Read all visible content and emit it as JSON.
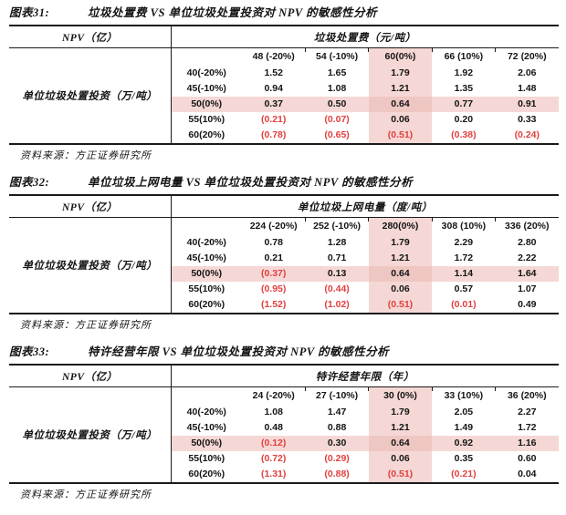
{
  "page": {
    "background": "#ffffff",
    "highlight_pink": "#f5d8d5",
    "highlight_pink_intersection": "#eec6c2",
    "negative_number_color": "#e04040",
    "border_color": "#1a1a1a"
  },
  "figures": [
    {
      "label": "图表31:",
      "title": "垃圾处置费 VS 单位垃圾处置投资对 NPV 的敏感性分析",
      "corner_header": "NPV（亿）",
      "col_axis_label": "垃圾处置费（元/吨）",
      "row_axis_label": "单位垃圾处置投资（万/吨）",
      "col_headers": [
        "48 (-20%)",
        "54 (-10%)",
        "60(0%)",
        "66 (10%)",
        "72 (20%)"
      ],
      "highlight_col": 2,
      "highlight_row": 2,
      "rows": [
        {
          "label": "40(-20%)",
          "values": [
            "1.52",
            "1.65",
            "1.79",
            "1.92",
            "2.06"
          ]
        },
        {
          "label": "45(-10%)",
          "values": [
            "0.94",
            "1.08",
            "1.21",
            "1.35",
            "1.48"
          ]
        },
        {
          "label": "50(0%)",
          "values": [
            "0.37",
            "0.50",
            "0.64",
            "0.77",
            "0.91"
          ]
        },
        {
          "label": "55(10%)",
          "values": [
            "(0.21)",
            "(0.07)",
            "0.06",
            "0.20",
            "0.33"
          ]
        },
        {
          "label": "60(20%)",
          "values": [
            "(0.78)",
            "(0.65)",
            "(0.51)",
            "(0.38)",
            "(0.24)"
          ]
        }
      ],
      "source": "资料来源：方正证券研究所"
    },
    {
      "label": "图表32:",
      "title": "单位垃圾上网电量 VS 单位垃圾处置投资对 NPV 的敏感性分析",
      "corner_header": "NPV（亿）",
      "col_axis_label": "单位垃圾上网电量（度/吨）",
      "row_axis_label": "单位垃圾处置投资（万/吨）",
      "col_headers": [
        "224 (-20%)",
        "252 (-10%)",
        "280(0%)",
        "308 (10%)",
        "336 (20%)"
      ],
      "highlight_col": 2,
      "highlight_row": 2,
      "rows": [
        {
          "label": "40(-20%)",
          "values": [
            "0.78",
            "1.28",
            "1.79",
            "2.29",
            "2.80"
          ]
        },
        {
          "label": "45(-10%)",
          "values": [
            "0.21",
            "0.71",
            "1.21",
            "1.72",
            "2.22"
          ]
        },
        {
          "label": "50(0%)",
          "values": [
            "(0.37)",
            "0.13",
            "0.64",
            "1.14",
            "1.64"
          ]
        },
        {
          "label": "55(10%)",
          "values": [
            "(0.95)",
            "(0.44)",
            "0.06",
            "0.57",
            "1.07"
          ]
        },
        {
          "label": "60(20%)",
          "values": [
            "(1.52)",
            "(1.02)",
            "(0.51)",
            "(0.01)",
            "0.49"
          ]
        }
      ],
      "source": "资料来源：方正证券研究所"
    },
    {
      "label": "图表33:",
      "title": "特许经营年限 VS 单位垃圾处置投资对 NPV 的敏感性分析",
      "corner_header": "NPV（亿）",
      "col_axis_label": "特许经营年限（年）",
      "row_axis_label": "单位垃圾处置投资（万/吨）",
      "col_headers": [
        "24 (-20%)",
        "27 (-10%)",
        "30 (0%)",
        "33 (10%)",
        "36 (20%)"
      ],
      "highlight_col": 2,
      "highlight_row": 2,
      "rows": [
        {
          "label": "40(-20%)",
          "values": [
            "1.08",
            "1.47",
            "1.79",
            "2.05",
            "2.27"
          ]
        },
        {
          "label": "45(-10%)",
          "values": [
            "0.48",
            "0.88",
            "1.21",
            "1.49",
            "1.72"
          ]
        },
        {
          "label": "50(0%)",
          "values": [
            "(0.12)",
            "0.30",
            "0.64",
            "0.92",
            "1.16"
          ]
        },
        {
          "label": "55(10%)",
          "values": [
            "(0.72)",
            "(0.29)",
            "0.06",
            "0.35",
            "0.60"
          ]
        },
        {
          "label": "60(20%)",
          "values": [
            "(1.31)",
            "(0.88)",
            "(0.51)",
            "(0.21)",
            "0.04"
          ]
        }
      ],
      "source": "资料来源：方正证券研究所"
    }
  ]
}
